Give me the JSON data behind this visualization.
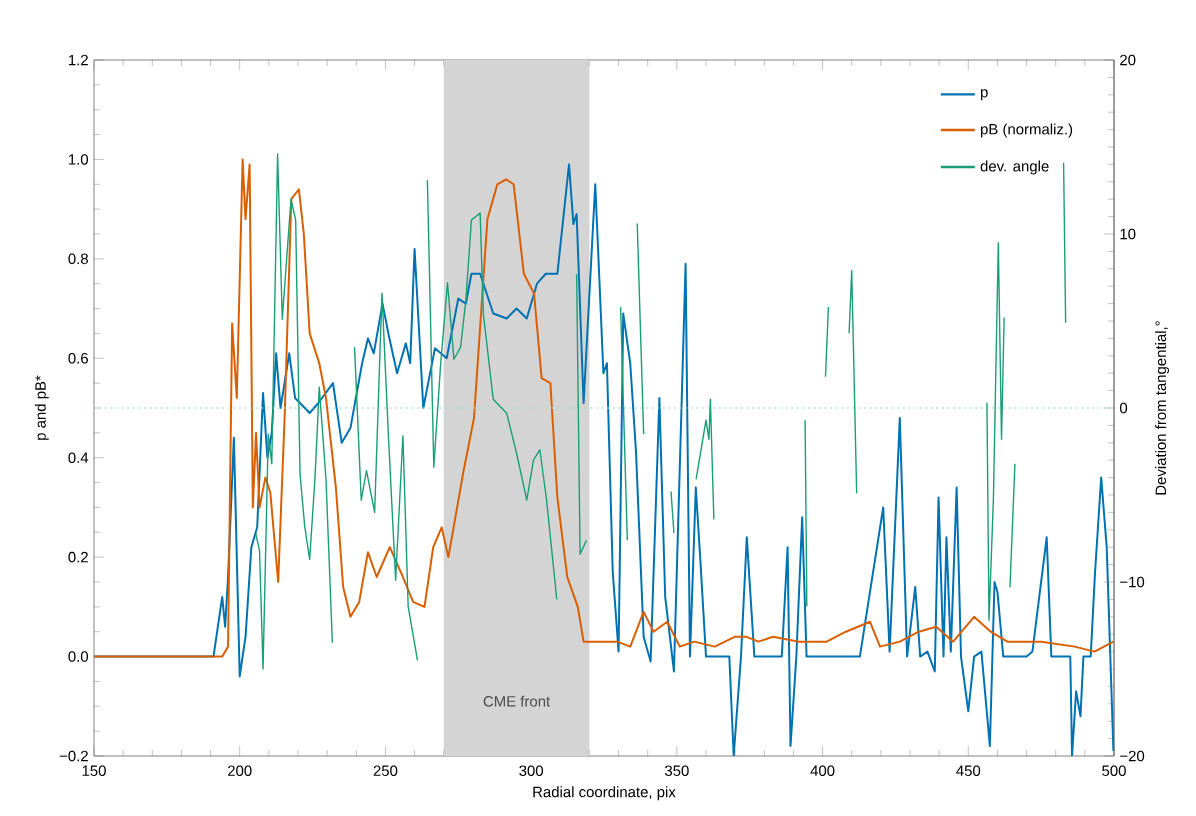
{
  "chart_data": {
    "type": "line",
    "xlabel": "Radial coordinate, pix",
    "ylabel": "p and pB*",
    "y2label": "Deviation from tangential,°",
    "xlim": [
      150,
      500
    ],
    "xticks": [
      150,
      200,
      250,
      300,
      350,
      400,
      450,
      500
    ],
    "ylim": [
      -0.2,
      1.2
    ],
    "yticks": [
      {
        "value": -0.2,
        "label": "−0.2"
      },
      {
        "value": 0,
        "label": "0.0"
      },
      {
        "value": 0.2,
        "label": "0.2"
      },
      {
        "value": 0.4,
        "label": "0.4"
      },
      {
        "value": 0.6,
        "label": "0.6"
      },
      {
        "value": 0.8,
        "label": "0.8"
      },
      {
        "value": 1.0,
        "label": "1.0"
      },
      {
        "value": 1.2,
        "label": "1.2"
      }
    ],
    "y2lim": [
      -20,
      20
    ],
    "y2ticks": [
      {
        "value": -20,
        "label": "−20"
      },
      {
        "value": -10,
        "label": "−10"
      },
      0,
      10,
      20
    ],
    "legend": "top right",
    "marker": "none",
    "line_style": "solid",
    "grid": false,
    "bands": [
      {
        "axis": "x",
        "from": 270,
        "to": 320,
        "label": "CME front",
        "color": "#d4d4d4"
      }
    ],
    "ref_lines": [
      {
        "axis": "y2",
        "value": 0,
        "label": null,
        "color": "#a8dcc9",
        "line_style": "dotted"
      }
    ],
    "series": [
      {
        "name": "p",
        "color": "#0072b2",
        "x": [
          150,
          191,
          194,
          195,
          196,
          198,
          200,
          202,
          204,
          206,
          208,
          209.5,
          211,
          212.5,
          214,
          217,
          219,
          224,
          227,
          232,
          235,
          238,
          242,
          244,
          246,
          249,
          251,
          254,
          257,
          258.5,
          260,
          263,
          267,
          271,
          275,
          277.6,
          279.5,
          282.5,
          287,
          291.6,
          295,
          298.5,
          302,
          305,
          309,
          313,
          314.5,
          315.6,
          318,
          322,
          324.8,
          326,
          328,
          330,
          331.6,
          334,
          336,
          338.6,
          341,
          344,
          346,
          349,
          353,
          354.5,
          356.5,
          358,
          360,
          368,
          369.5,
          372,
          374,
          376.6,
          386,
          388,
          389,
          391,
          393,
          394.5,
          412.8,
          420.8,
          423,
          426.5,
          429,
          431.8,
          433.5,
          436,
          438.5,
          439.8,
          441.5,
          442.5,
          444,
          446,
          447.5,
          450,
          452,
          454.5,
          457.4,
          459,
          460,
          462,
          470,
          472,
          476.9,
          478.5,
          485,
          485.6,
          487,
          488.5,
          489.5,
          492,
          493.5,
          495.6,
          497.5,
          499.8
        ],
        "values": [
          0,
          0,
          0.12,
          0.06,
          0.16,
          0.44,
          -0.04,
          0.04,
          0.22,
          0.26,
          0.53,
          0.4,
          0.45,
          0.61,
          0.5,
          0.61,
          0.52,
          0.49,
          0.51,
          0.55,
          0.43,
          0.46,
          0.59,
          0.64,
          0.61,
          0.71,
          0.65,
          0.57,
          0.63,
          0.59,
          0.82,
          0.5,
          0.62,
          0.6,
          0.72,
          0.71,
          0.77,
          0.77,
          0.69,
          0.68,
          0.7,
          0.68,
          0.75,
          0.77,
          0.77,
          0.99,
          0.87,
          0.89,
          0.51,
          0.95,
          0.57,
          0.59,
          0.17,
          0.01,
          0.69,
          0.59,
          0.41,
          0.04,
          -0.01,
          0.52,
          0.12,
          -0.03,
          0.79,
          0.0,
          0.34,
          0.2,
          0.0,
          0.0,
          -0.2,
          0.0,
          0.24,
          0.0,
          0.0,
          0.22,
          -0.18,
          0.0,
          0.28,
          0.0,
          0.0,
          0.3,
          0.01,
          0.48,
          0.0,
          0.14,
          0.0,
          0.01,
          -0.03,
          0.32,
          0.0,
          0.24,
          0.01,
          0.34,
          0.0,
          -0.11,
          0.0,
          0.01,
          -0.18,
          0.15,
          0.13,
          0.0,
          0.0,
          0.01,
          0.24,
          0.0,
          0.0,
          -0.2,
          -0.07,
          -0.12,
          0.0,
          0.0,
          0.17,
          0.36,
          0.22,
          -0.19
        ]
      },
      {
        "name": "pB (normaliz.)",
        "color": "#d95f02",
        "x": [
          150,
          194,
          196,
          197.4,
          199,
          201,
          202,
          203.4,
          204.5,
          205.6,
          206.8,
          208.8,
          210.5,
          213.2,
          215.4,
          217.7,
          220.3,
          222,
          224,
          227.3,
          229.6,
          233,
          235.5,
          238,
          241,
          244,
          247,
          251.5,
          256,
          259.5,
          263.4,
          266.4,
          269.3,
          271.6,
          276.7,
          280.4,
          282.7,
          285,
          288.4,
          291.4,
          294,
          297.5,
          301,
          303.6,
          306.6,
          309,
          312.4,
          316,
          318,
          324,
          329.6,
          334,
          338.6,
          342,
          346.7,
          351,
          356,
          363,
          370,
          373.7,
          378,
          383,
          392,
          401.4,
          408,
          416.3,
          419.7,
          426.5,
          433,
          439,
          444.8,
          452,
          457.7,
          463.4,
          475,
          486.5,
          493.3,
          499.8
        ],
        "values": [
          0,
          0,
          0.02,
          0.67,
          0.52,
          1.0,
          0.88,
          0.99,
          0.3,
          0.45,
          0.3,
          0.36,
          0.33,
          0.15,
          0.48,
          0.92,
          0.94,
          0.85,
          0.65,
          0.59,
          0.52,
          0.34,
          0.14,
          0.08,
          0.11,
          0.21,
          0.16,
          0.22,
          0.16,
          0.11,
          0.1,
          0.22,
          0.26,
          0.2,
          0.37,
          0.48,
          0.68,
          0.88,
          0.95,
          0.96,
          0.95,
          0.77,
          0.73,
          0.56,
          0.55,
          0.32,
          0.16,
          0.1,
          0.03,
          0.03,
          0.03,
          0.02,
          0.09,
          0.05,
          0.07,
          0.02,
          0.03,
          0.02,
          0.04,
          0.04,
          0.03,
          0.04,
          0.03,
          0.03,
          0.05,
          0.07,
          0.02,
          0.03,
          0.05,
          0.06,
          0.03,
          0.08,
          0.05,
          0.03,
          0.03,
          0.02,
          0.01,
          0.03
        ]
      },
      {
        "name": "dev. angle",
        "color": "#1b9e77",
        "axis": "y2",
        "x": [
          205.5,
          206.8,
          208,
          209.8,
          211,
          213,
          214.6,
          217.6,
          219.2,
          220.7,
          222.3,
          224,
          225.8,
          227.3,
          229.6,
          231.8,
          null,
          239.4,
          241.7,
          243.5,
          246.3,
          248.8,
          251,
          253.5,
          256,
          257.8,
          261,
          null,
          264.4,
          266.6,
          268.9,
          271.3,
          273.5,
          275.8,
          277.6,
          279.5,
          282.5,
          283.6,
          287,
          291.6,
          295,
          298.5,
          300.8,
          303,
          305.3,
          308.8,
          null,
          315.6,
          316.8,
          319,
          null,
          330.7,
          333,
          null,
          336.4,
          338.6,
          null,
          348,
          349,
          null,
          356.6,
          360,
          361,
          361.5,
          362.7,
          null,
          394,
          394.6,
          null,
          401,
          402,
          null,
          409.1,
          410,
          411.7,
          null,
          456.4,
          457.1,
          458.6,
          460.3,
          461.4,
          462.3,
          null,
          464.3,
          466,
          null,
          482.7,
          483.4
        ],
        "values": [
          -7.2,
          -8.2,
          -15,
          -1.5,
          -3.2,
          14.6,
          5.1,
          12,
          10.8,
          -3.8,
          -6.8,
          -8.7,
          -4.1,
          1.2,
          -4.1,
          -13.5,
          null,
          3.5,
          -5.3,
          -3.6,
          -6.0,
          6.6,
          -1.5,
          -9.9,
          -1.6,
          -11.4,
          -14.5,
          null,
          13.1,
          -3.4,
          2.4,
          7.2,
          2.8,
          3.5,
          6.2,
          10.8,
          11.2,
          5.4,
          0.5,
          -0.3,
          -2.6,
          -5.3,
          -3.0,
          -2.4,
          -5.3,
          -11,
          null,
          7.7,
          -8.4,
          -7.6,
          null,
          5.8,
          -7.6,
          null,
          10.6,
          -1.5,
          null,
          -4.8,
          -7.2,
          null,
          -4.1,
          -0.7,
          -1.8,
          0.5,
          -6.4,
          null,
          -0.7,
          -11.4,
          null,
          1.8,
          5.8,
          null,
          4.3,
          7.9,
          -4.9,
          null,
          0.3,
          -12.2,
          -5.3,
          9.5,
          -1.8,
          5.2,
          null,
          -10.3,
          -3.2,
          null,
          14.1,
          4.9
        ]
      }
    ]
  }
}
